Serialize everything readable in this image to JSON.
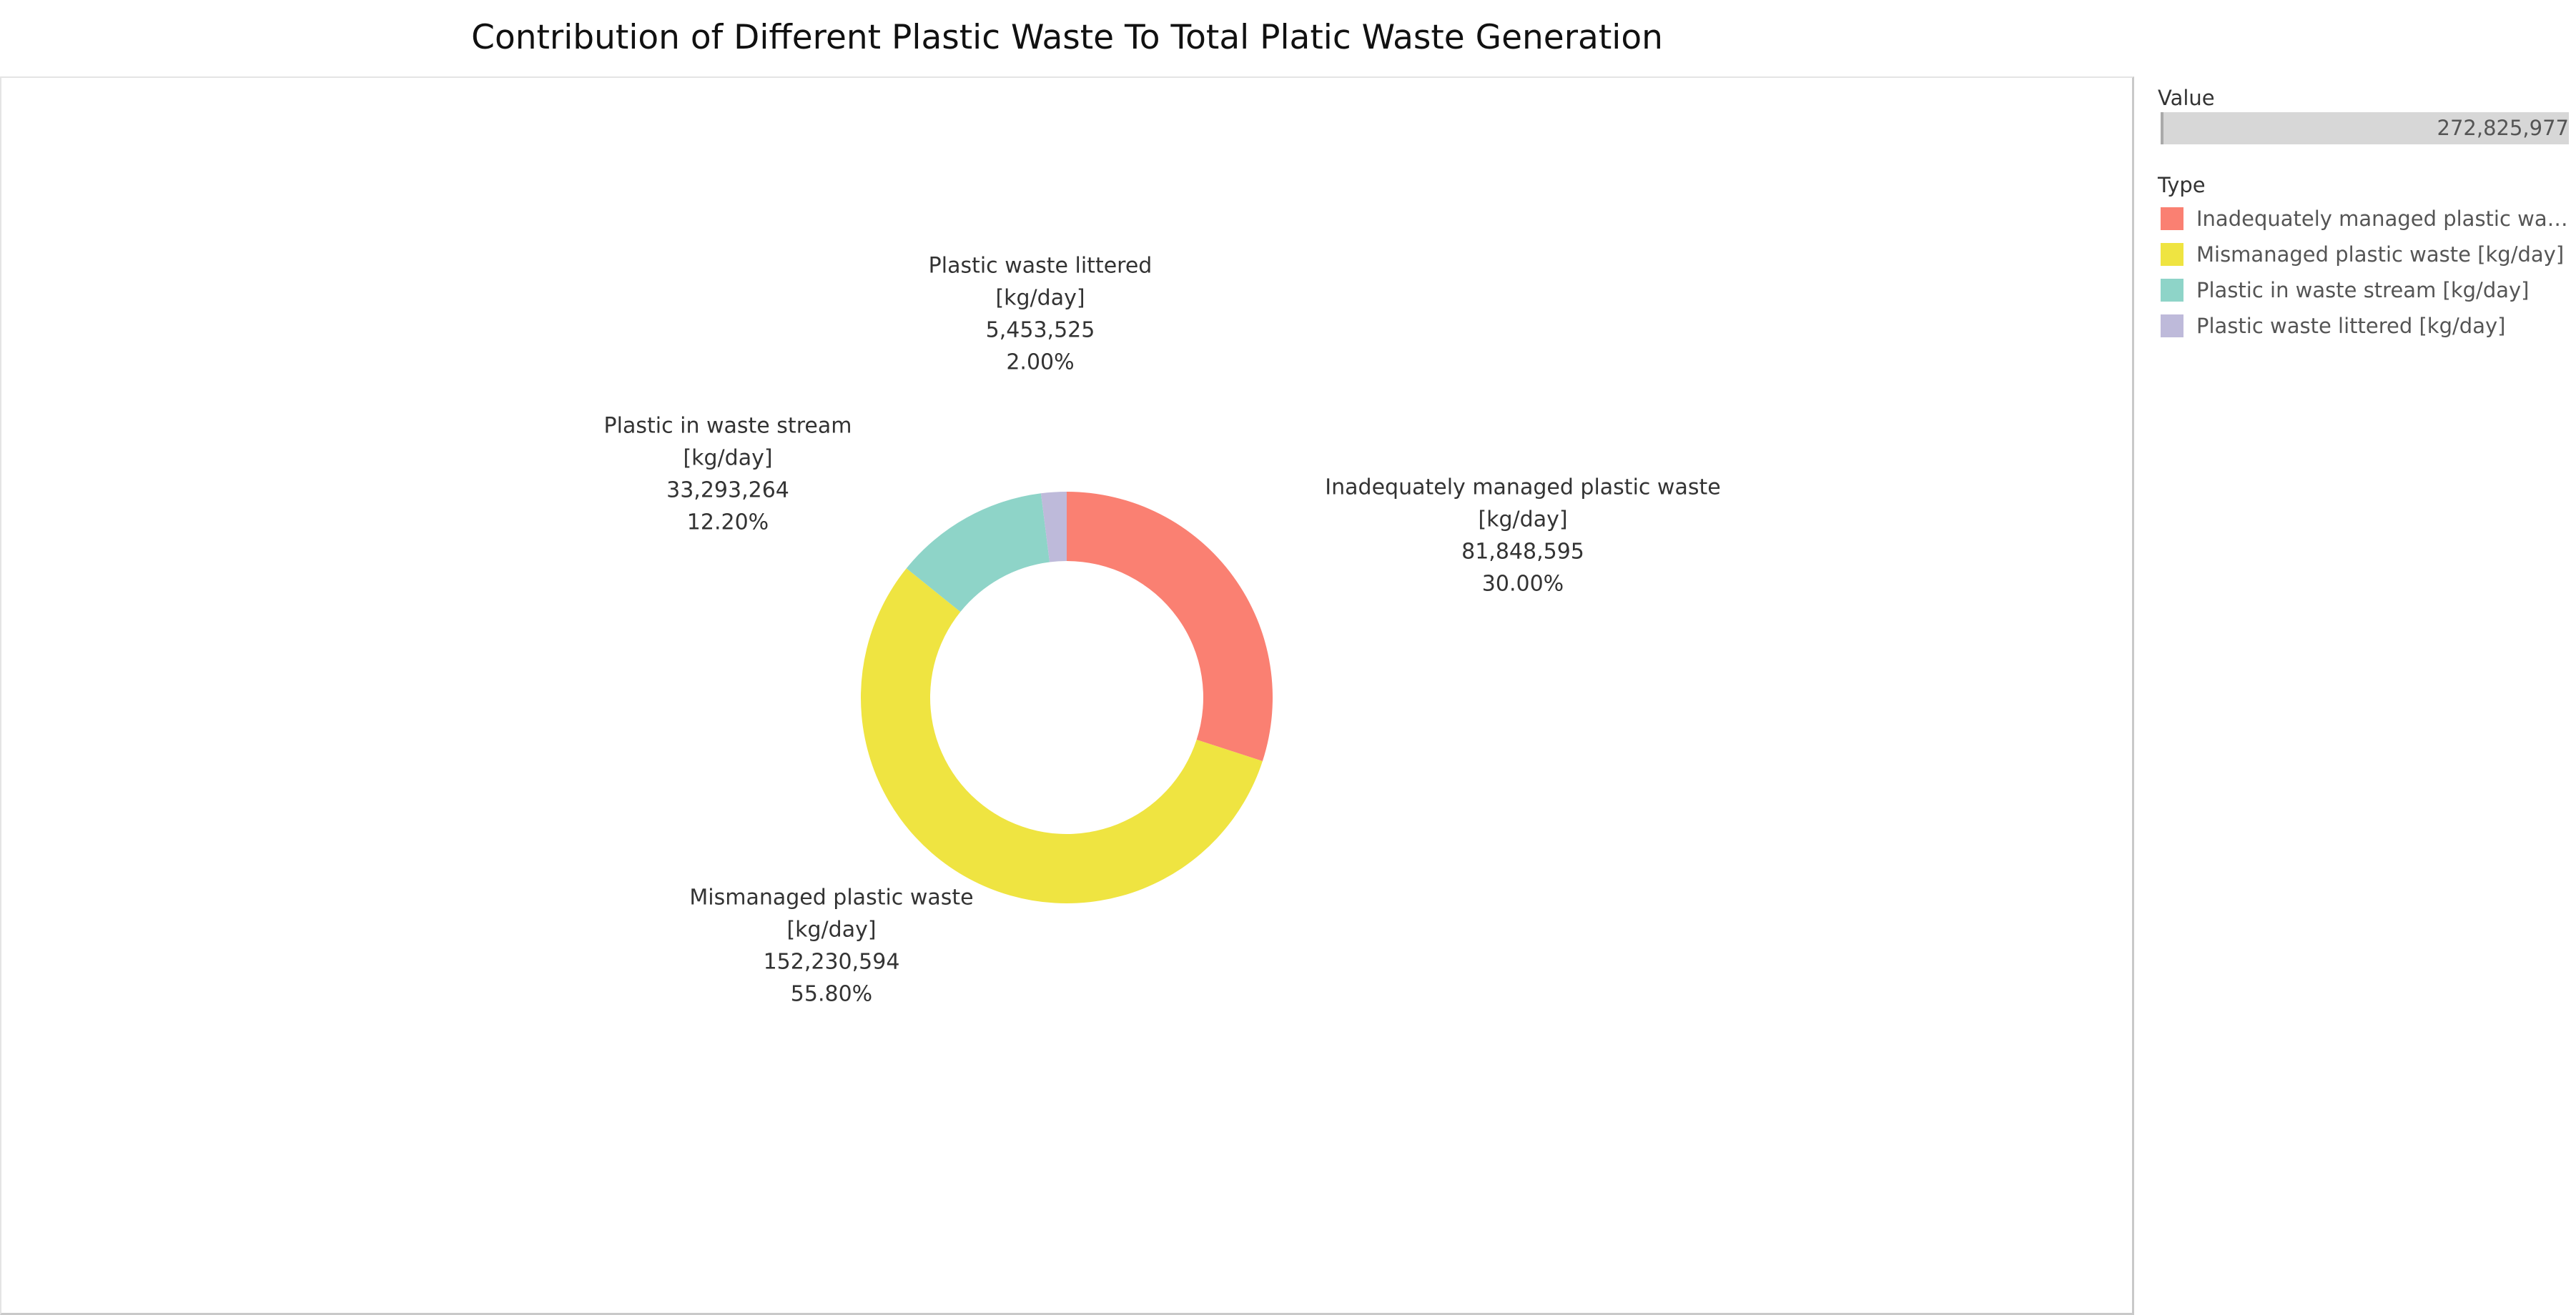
{
  "chart_data": {
    "type": "pie",
    "title": "Contribution of Different Plastic Waste To Total Platic Waste Generation",
    "donut": true,
    "slices": [
      {
        "key": "inadequately",
        "label_lines": [
          "Inadequately managed plastic waste",
          "[kg/day]"
        ],
        "value": 81848595,
        "value_text": "81,848,595",
        "percent": 30.0,
        "percent_text": "30.00%",
        "color": "#FA8072"
      },
      {
        "key": "mismanaged",
        "label_lines": [
          "Mismanaged plastic waste",
          "[kg/day]"
        ],
        "value": 152230594,
        "value_text": "152,230,594",
        "percent": 55.8,
        "percent_text": "55.80%",
        "color": "#EFE441"
      },
      {
        "key": "waste-stream",
        "label_lines": [
          "Plastic in waste stream",
          "[kg/day]"
        ],
        "value": 33293264,
        "value_text": "33,293,264",
        "percent": 12.2,
        "percent_text": "12.20%",
        "color": "#8ED4C8"
      },
      {
        "key": "littered",
        "label_lines": [
          "Plastic waste littered",
          "[kg/day]"
        ],
        "value": 5453525,
        "value_text": "5,453,525",
        "percent": 2.0,
        "percent_text": "2.00%",
        "color": "#BEBADA"
      }
    ]
  },
  "legend": {
    "value_heading": "Value",
    "value_total": "272,825,977",
    "type_heading": "Type",
    "items": [
      {
        "label": "Inadequately managed plastic wast..",
        "color": "#FA8072"
      },
      {
        "label": "Mismanaged plastic waste [kg/day]",
        "color": "#EFE441"
      },
      {
        "label": "Plastic in waste stream  [kg/day]",
        "color": "#8ED4C8"
      },
      {
        "label": "Plastic waste littered [kg/day]",
        "color": "#BEBADA"
      }
    ]
  }
}
